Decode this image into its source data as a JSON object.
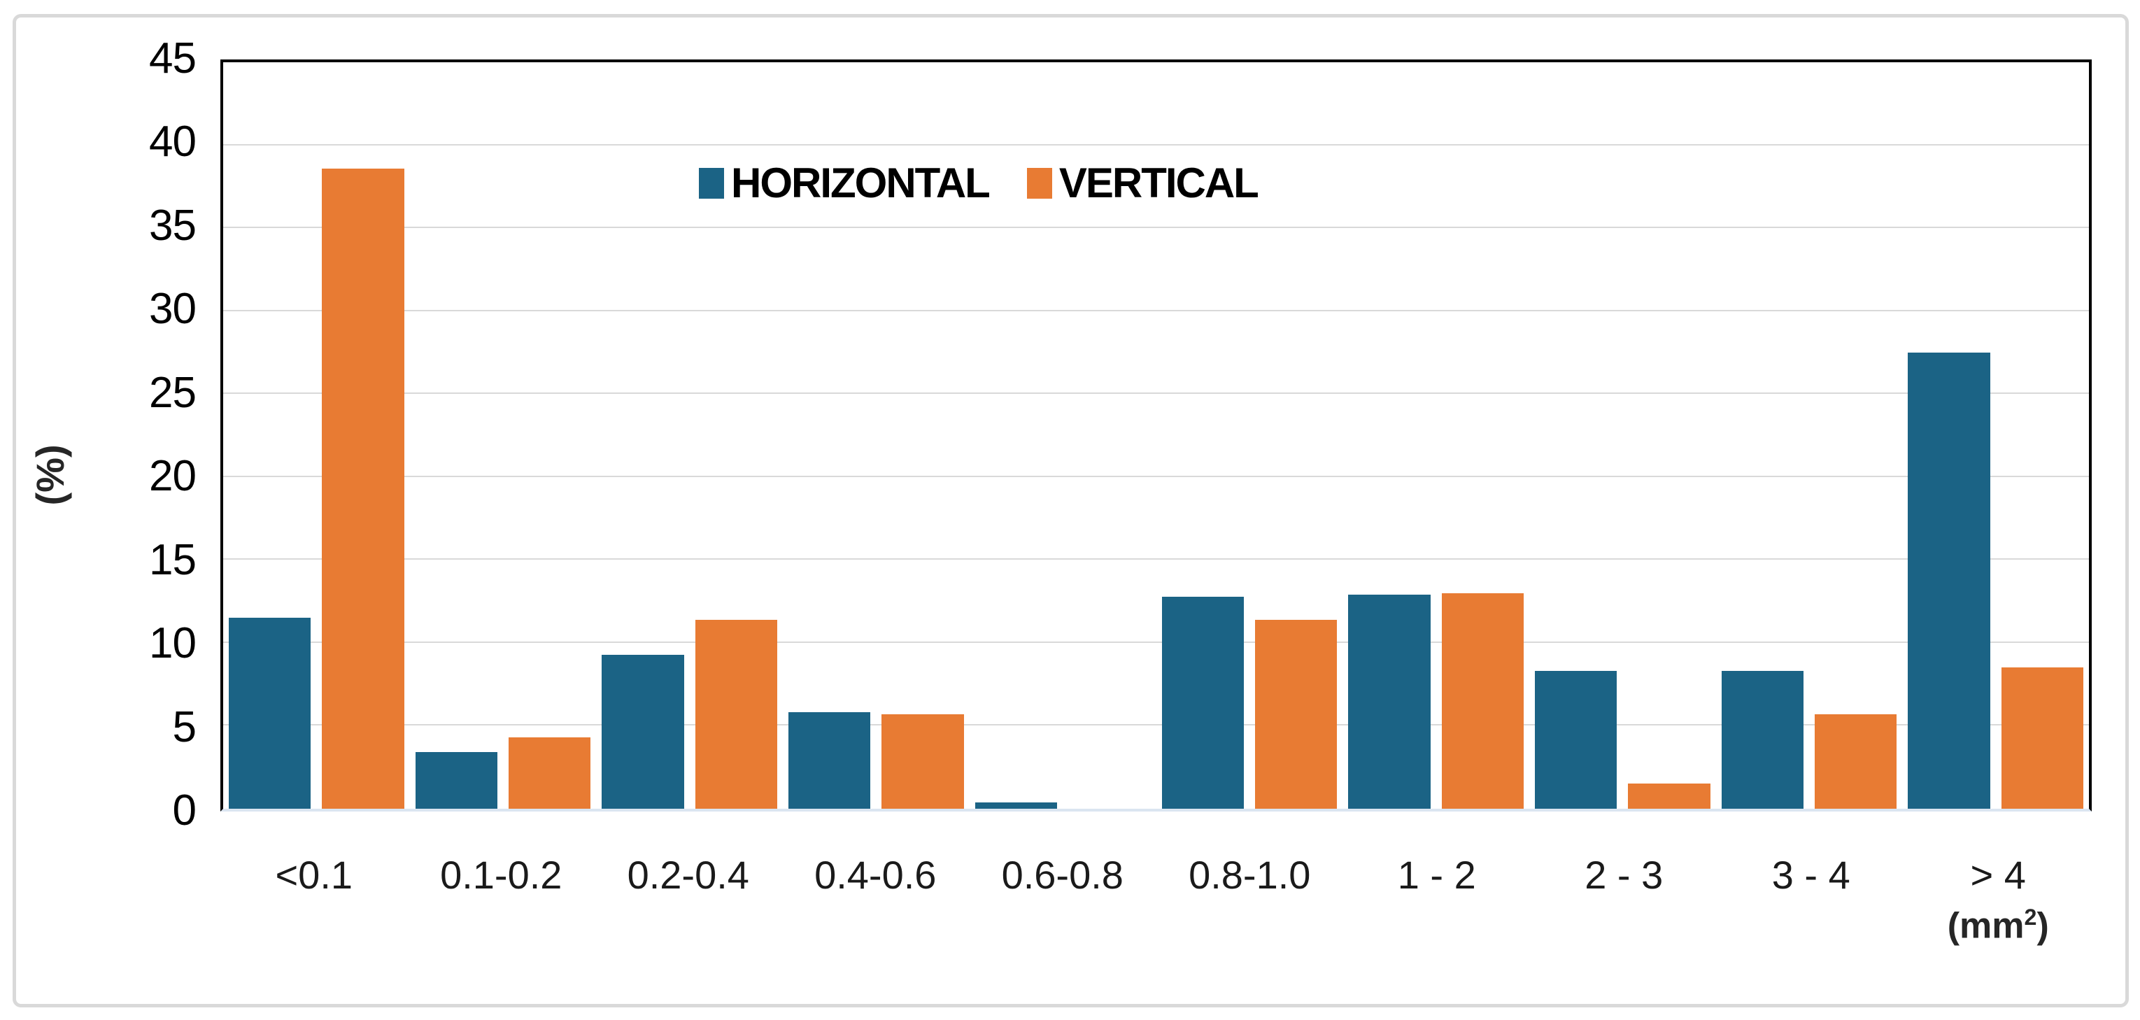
{
  "chart_data": {
    "type": "bar",
    "title": "",
    "xlabel": "",
    "ylabel": "(%)",
    "ylim": [
      0,
      45
    ],
    "ytick_step": 5,
    "grid": "horizontal-only",
    "legend_position": "top-center-inside",
    "categories": [
      "<0.1",
      "0.1-0.2",
      "0.2-0.4",
      "0.4-0.6",
      "0.6-0.8",
      "0.8-1.0",
      "1 - 2",
      "2 - 3",
      "3 - 4",
      "> 4"
    ],
    "x_unit": {
      "prefix": "(mm",
      "sup": "2",
      "suffix": ")"
    },
    "yticks": [
      "45",
      "40",
      "35",
      "30",
      "25",
      "20",
      "15",
      "10",
      "5",
      "0"
    ],
    "ytick_values": [
      45,
      40,
      35,
      30,
      25,
      20,
      15,
      10,
      5,
      0
    ],
    "series": [
      {
        "name": "HORIZONTAL",
        "color": "#1b6385",
        "values": [
          11.5,
          3.4,
          9.3,
          5.8,
          0.4,
          12.8,
          12.9,
          8.3,
          8.3,
          27.5
        ]
      },
      {
        "name": "VERTICAL",
        "color": "#e87b33",
        "values": [
          38.6,
          4.3,
          11.4,
          5.7,
          0.0,
          11.4,
          13.0,
          1.5,
          5.7,
          8.5
        ]
      }
    ],
    "colors": {
      "gridline": "#d9d9d9",
      "plot_border": "#000000",
      "baseline": "#dbe5f1",
      "outer_frame": "#d9d9d9",
      "text": "#000000"
    }
  }
}
